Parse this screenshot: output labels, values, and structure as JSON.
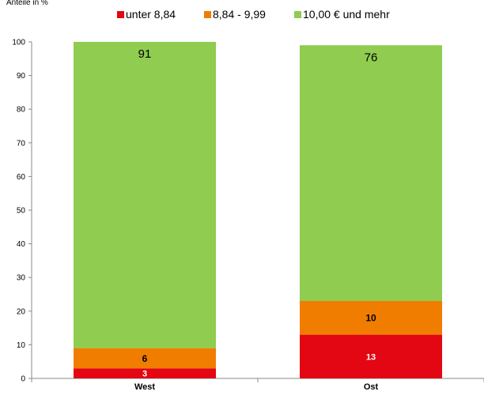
{
  "chart_data": {
    "type": "bar",
    "stacked": true,
    "title": "",
    "corner_label": "Anteile in %",
    "xlabel": "",
    "ylabel": "",
    "ylim": [
      0,
      100
    ],
    "yticks": [
      0,
      10,
      20,
      30,
      40,
      50,
      60,
      70,
      80,
      90,
      100
    ],
    "categories": [
      "West",
      "Ost"
    ],
    "legend_position": "top",
    "series": [
      {
        "name": "unter 8,84",
        "color": "#e30613",
        "values": [
          3,
          13
        ],
        "label_color": "#ffffff",
        "label_bold": true,
        "label_size": 11
      },
      {
        "name": "8,84 - 9,99",
        "color": "#f07d00",
        "values": [
          6,
          10
        ],
        "label_color": "#000000",
        "label_bold": true,
        "label_size": 12
      },
      {
        "name": "10,00 € und mehr",
        "color": "#8fcc4f",
        "values": [
          91,
          76
        ],
        "label_color": "#000000",
        "label_bold": false,
        "label_size": 15,
        "label_at_top": true
      }
    ]
  }
}
